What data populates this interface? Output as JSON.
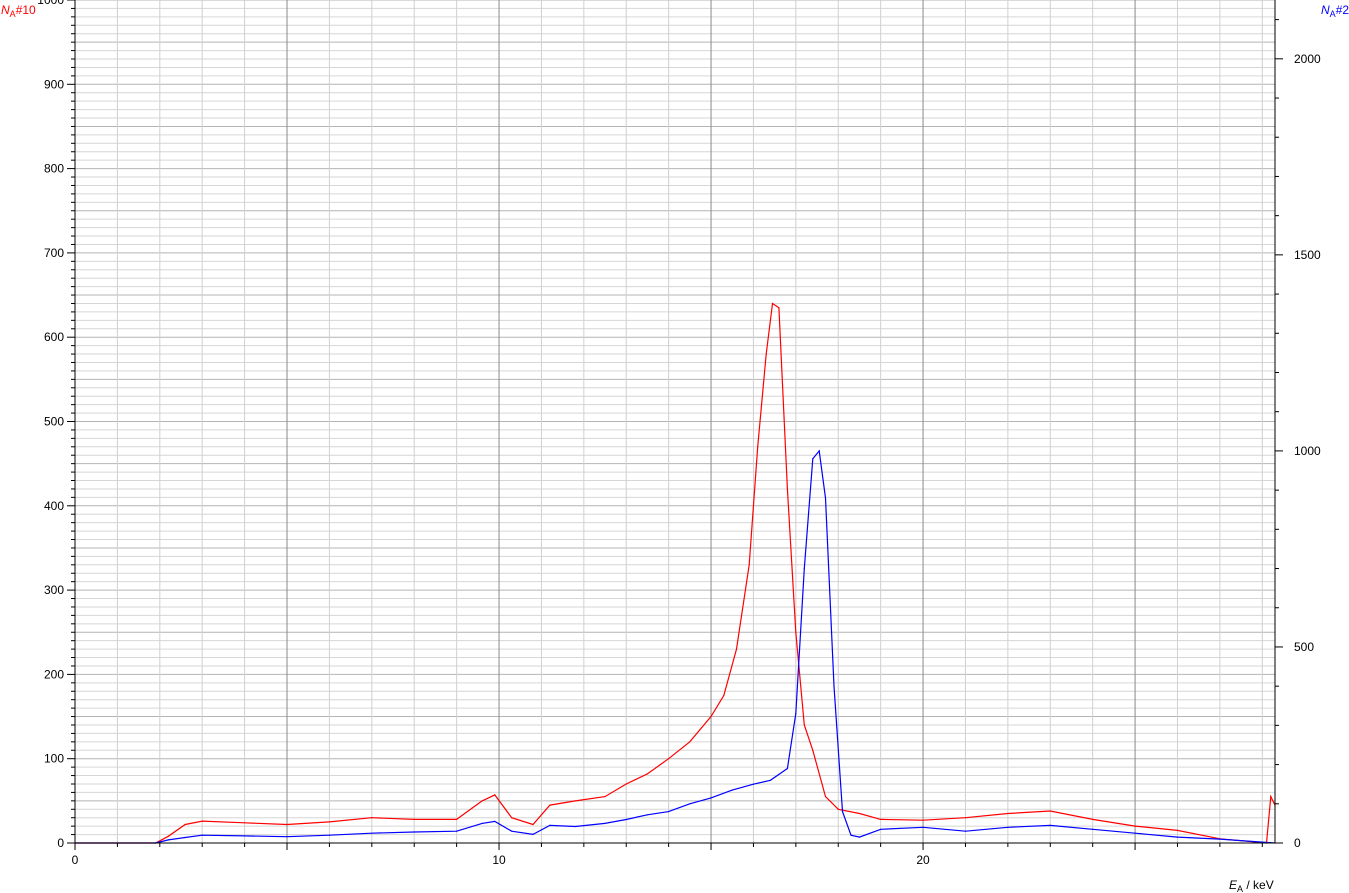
{
  "chart_data": {
    "type": "line",
    "xlabel": {
      "symbol": "E",
      "sub": "A",
      "unit": " / keV"
    },
    "y_left_label": {
      "symbol": "N",
      "sub": "A",
      "suffix": "#10",
      "color": "#ff0000"
    },
    "y_right_label": {
      "symbol": "N",
      "sub": "A",
      "suffix": "#2",
      "color": "#0000ff"
    },
    "xlim": [
      0,
      28.3
    ],
    "ylim_left": [
      0,
      1000
    ],
    "ylim_right": [
      0,
      2150
    ],
    "x_ticks": [
      0,
      10,
      20
    ],
    "y_left_ticks": [
      0,
      100,
      200,
      300,
      400,
      500,
      600,
      700,
      800,
      900,
      1000
    ],
    "y_right_ticks": [
      0,
      500,
      1000,
      1500,
      2000
    ],
    "grid": true,
    "series": [
      {
        "axis": "left",
        "color": "#ff0000",
        "x": [
          0,
          1.9,
          2.2,
          2.6,
          3,
          4,
          5,
          6,
          7,
          8,
          9,
          9.6,
          9.9,
          10.3,
          10.8,
          11.2,
          11.8,
          12.5,
          13,
          13.5,
          14,
          14.5,
          15,
          15.3,
          15.6,
          15.9,
          16.1,
          16.3,
          16.45,
          16.6,
          16.8,
          17.0,
          17.2,
          17.4,
          17.7,
          18.0,
          18.5,
          19,
          20,
          21,
          22,
          23,
          24,
          25,
          26,
          27,
          28.1,
          28.2,
          28.3
        ],
        "y": [
          0,
          0,
          8,
          22,
          26,
          24,
          22,
          25,
          30,
          28,
          28,
          50,
          57,
          30,
          22,
          45,
          50,
          55,
          70,
          82,
          100,
          120,
          150,
          175,
          230,
          330,
          470,
          580,
          640,
          635,
          420,
          250,
          140,
          110,
          55,
          40,
          35,
          28,
          27,
          30,
          35,
          38,
          28,
          20,
          15,
          5,
          0,
          55,
          45
        ]
      },
      {
        "axis": "right",
        "color": "#0000ff",
        "x": [
          0,
          1.9,
          2.2,
          2.6,
          3,
          4,
          5,
          6,
          7,
          8,
          9,
          9.6,
          9.9,
          10.3,
          10.8,
          11.2,
          11.8,
          12.5,
          13,
          13.5,
          14,
          14.5,
          15,
          15.5,
          16,
          16.4,
          16.8,
          17.0,
          17.2,
          17.4,
          17.55,
          17.7,
          17.9,
          18.1,
          18.3,
          18.5,
          19,
          20,
          21,
          22,
          23,
          24,
          25,
          26,
          27,
          28.3
        ],
        "y": [
          0,
          0,
          8,
          14,
          20,
          18,
          16,
          20,
          25,
          28,
          30,
          50,
          55,
          30,
          22,
          45,
          42,
          50,
          60,
          72,
          80,
          100,
          115,
          135,
          150,
          160,
          190,
          330,
          700,
          980,
          1000,
          880,
          400,
          80,
          20,
          15,
          35,
          40,
          30,
          40,
          45,
          35,
          25,
          15,
          10,
          0
        ]
      }
    ]
  }
}
